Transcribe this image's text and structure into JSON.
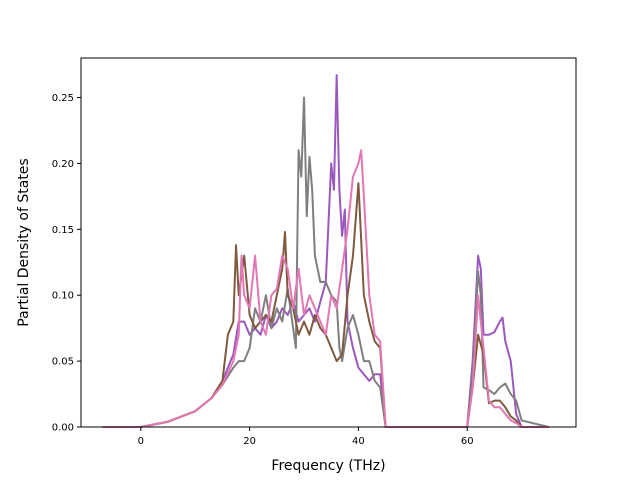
{
  "chart_data": {
    "type": "line",
    "title": "",
    "xlabel": "Frequency (THz)",
    "ylabel": "Partial Density of States",
    "xlim": [
      -11,
      80
    ],
    "ylim": [
      0,
      0.28
    ],
    "xticks": [
      0,
      20,
      40,
      60
    ],
    "yticks": [
      0.0,
      0.05,
      0.1,
      0.15,
      0.2,
      0.25
    ],
    "ytick_labels": [
      "0.00",
      "0.05",
      "0.10",
      "0.15",
      "0.20",
      "0.25"
    ],
    "grid": false,
    "legend": "none",
    "series": [
      {
        "color": "#9b59c0",
        "x": [
          -7,
          0,
          5,
          10,
          13,
          15,
          17,
          18,
          19,
          20,
          21,
          22,
          23,
          24,
          25,
          26,
          27,
          28,
          29,
          30,
          31,
          32,
          33,
          34,
          35,
          35.5,
          36,
          36.5,
          37,
          37.5,
          38,
          39,
          40,
          41,
          42,
          43,
          44,
          45,
          46,
          60,
          61,
          62,
          62.5,
          63,
          64,
          65,
          66,
          66.5,
          67,
          68,
          69,
          70,
          75
        ],
        "y": [
          0,
          0,
          0.004,
          0.012,
          0.022,
          0.035,
          0.055,
          0.08,
          0.08,
          0.07,
          0.075,
          0.07,
          0.085,
          0.075,
          0.08,
          0.09,
          0.085,
          0.095,
          0.08,
          0.085,
          0.09,
          0.08,
          0.095,
          0.11,
          0.2,
          0.18,
          0.267,
          0.18,
          0.145,
          0.165,
          0.08,
          0.06,
          0.045,
          0.04,
          0.035,
          0.04,
          0.04,
          0,
          0,
          0,
          0.05,
          0.13,
          0.12,
          0.07,
          0.07,
          0.072,
          0.08,
          0.083,
          0.065,
          0.05,
          0.01,
          0,
          0
        ]
      },
      {
        "color": "#7f7f7f",
        "x": [
          -7,
          0,
          5,
          10,
          13,
          15,
          17,
          18,
          19,
          20,
          21,
          22,
          23,
          24,
          25,
          26,
          27,
          28,
          28.5,
          29,
          29.5,
          30,
          30.5,
          31,
          31.5,
          32,
          33,
          34,
          35,
          36,
          36.5,
          37,
          38,
          39,
          40,
          41,
          42,
          43,
          44,
          45,
          46,
          60,
          61,
          62,
          62.5,
          63,
          64,
          65,
          66,
          67,
          68,
          69,
          70,
          75
        ],
        "y": [
          0,
          0,
          0.004,
          0.012,
          0.022,
          0.032,
          0.045,
          0.05,
          0.05,
          0.06,
          0.09,
          0.08,
          0.1,
          0.075,
          0.09,
          0.08,
          0.105,
          0.075,
          0.06,
          0.21,
          0.19,
          0.25,
          0.16,
          0.205,
          0.18,
          0.13,
          0.11,
          0.11,
          0.1,
          0.095,
          0.06,
          0.05,
          0.075,
          0.085,
          0.07,
          0.05,
          0.05,
          0.035,
          0.03,
          0,
          0,
          0,
          0.04,
          0.118,
          0.1,
          0.03,
          0.028,
          0.025,
          0.03,
          0.033,
          0.025,
          0.02,
          0.005,
          0
        ]
      },
      {
        "color": "#7f5a3f",
        "x": [
          -7,
          0,
          5,
          10,
          13,
          15,
          16,
          17,
          17.5,
          18,
          19,
          20,
          21,
          22,
          23,
          24,
          25,
          26,
          26.5,
          27,
          28,
          29,
          30,
          31,
          32,
          33,
          34,
          35,
          36,
          37,
          38,
          39,
          40,
          41,
          42,
          43,
          44,
          45,
          46,
          60,
          61,
          62,
          63,
          64,
          65,
          66,
          67,
          68,
          69,
          70,
          75
        ],
        "y": [
          0,
          0,
          0.004,
          0.012,
          0.022,
          0.035,
          0.07,
          0.08,
          0.138,
          0.1,
          0.13,
          0.085,
          0.075,
          0.08,
          0.085,
          0.08,
          0.1,
          0.12,
          0.148,
          0.1,
          0.09,
          0.07,
          0.08,
          0.07,
          0.085,
          0.075,
          0.07,
          0.06,
          0.05,
          0.055,
          0.1,
          0.13,
          0.185,
          0.1,
          0.08,
          0.065,
          0.06,
          0,
          0,
          0,
          0.03,
          0.07,
          0.055,
          0.018,
          0.02,
          0.02,
          0.015,
          0.008,
          0.005,
          0,
          0
        ]
      },
      {
        "color": "#e377b4",
        "x": [
          -7,
          0,
          5,
          10,
          13,
          15,
          17,
          18,
          18.5,
          19,
          20,
          21,
          22,
          23,
          24,
          25,
          26,
          27,
          28,
          29,
          30,
          31,
          32,
          33,
          34,
          35,
          36,
          37,
          38,
          39,
          40,
          40.5,
          41,
          42,
          43,
          44,
          45,
          46,
          60,
          61,
          62,
          63,
          64,
          65,
          66,
          67,
          68,
          69,
          70,
          75
        ],
        "y": [
          0,
          0,
          0.004,
          0.012,
          0.022,
          0.032,
          0.05,
          0.07,
          0.13,
          0.1,
          0.09,
          0.13,
          0.08,
          0.07,
          0.1,
          0.105,
          0.13,
          0.12,
          0.09,
          0.12,
          0.085,
          0.1,
          0.09,
          0.08,
          0.07,
          0.1,
          0.09,
          0.12,
          0.15,
          0.19,
          0.2,
          0.21,
          0.175,
          0.1,
          0.07,
          0.065,
          0,
          0,
          0,
          0.03,
          0.1,
          0.06,
          0.02,
          0.015,
          0.015,
          0.01,
          0.005,
          0.003,
          0,
          0
        ]
      }
    ]
  }
}
